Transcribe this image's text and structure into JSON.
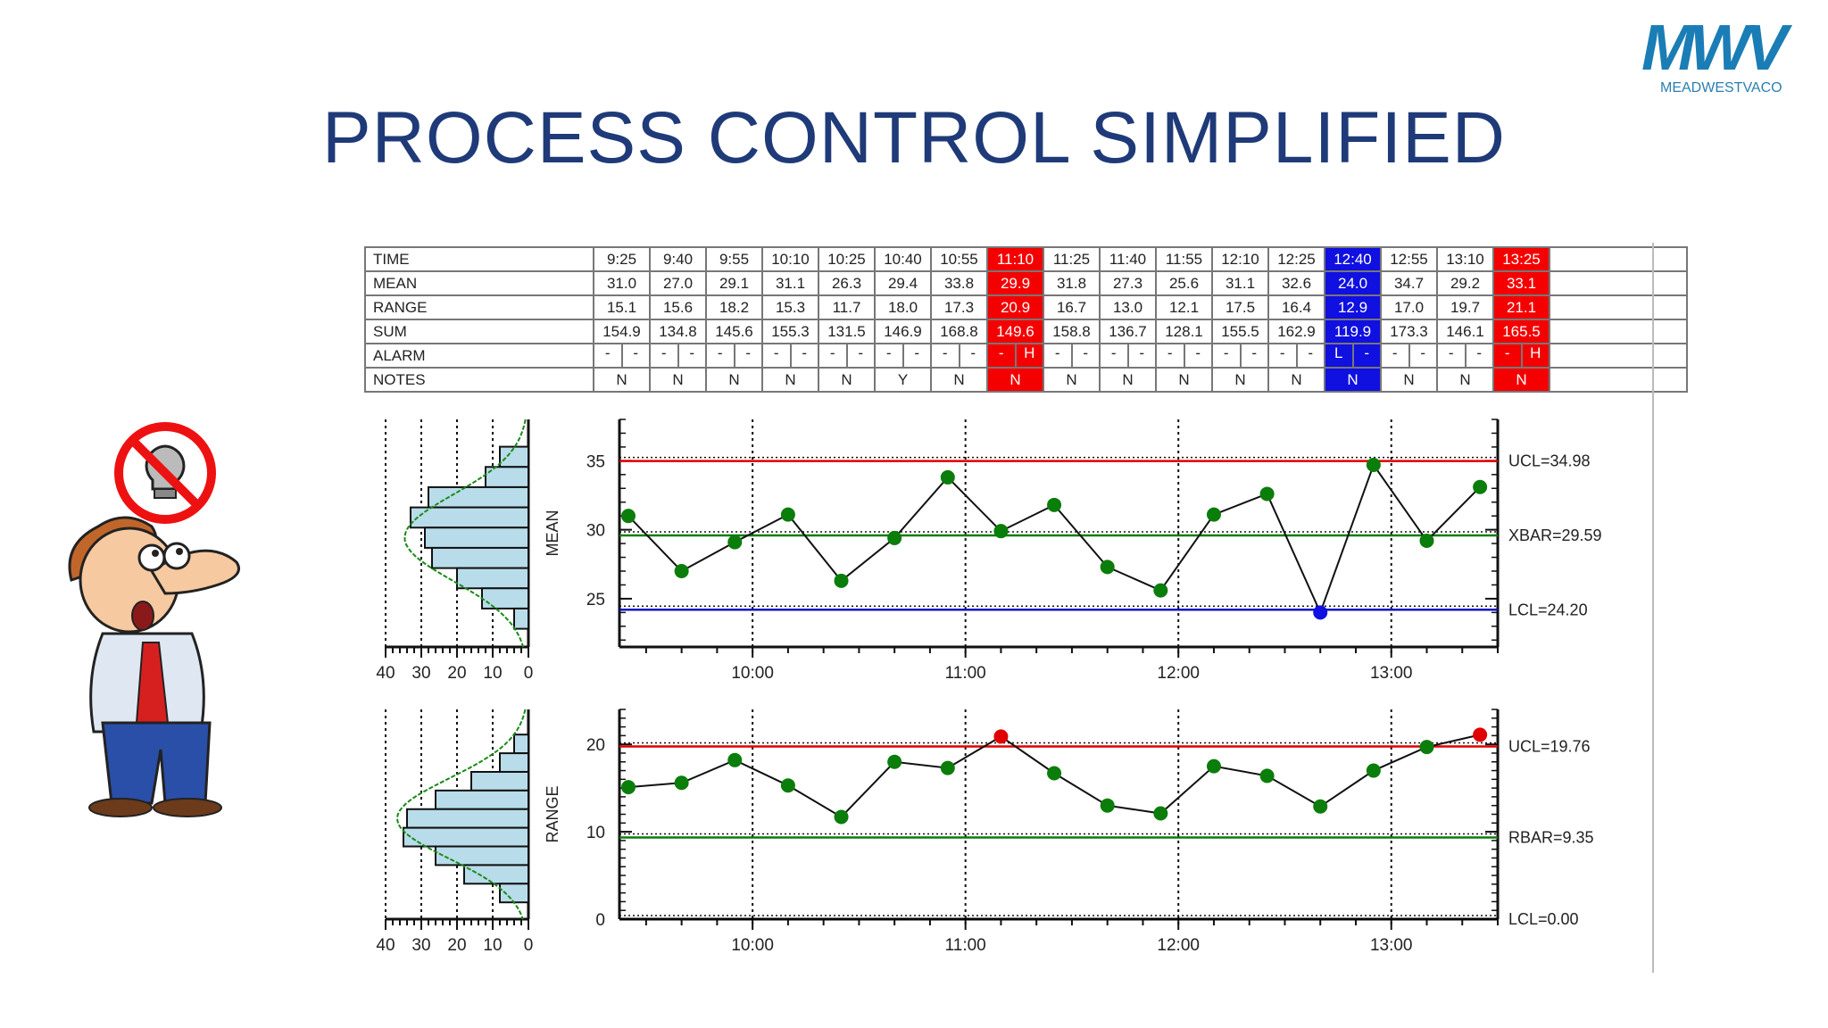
{
  "logo": {
    "text": "MWV",
    "subtitle": "MEADWESTVACO",
    "color": "#1b7db5"
  },
  "title": "PROCESS CONTROL SIMPLIFIED",
  "table": {
    "row_labels": [
      "TIME",
      "MEAN",
      "RANGE",
      "SUM",
      "ALARM",
      "NOTES"
    ],
    "columns": [
      {
        "time": "9:25",
        "mean": "31.0",
        "range": "15.1",
        "sum": "154.9",
        "alarm": [
          "-",
          "-"
        ],
        "note": "N",
        "status": ""
      },
      {
        "time": "9:40",
        "mean": "27.0",
        "range": "15.6",
        "sum": "134.8",
        "alarm": [
          "-",
          "-"
        ],
        "note": "N",
        "status": ""
      },
      {
        "time": "9:55",
        "mean": "29.1",
        "range": "18.2",
        "sum": "145.6",
        "alarm": [
          "-",
          "-"
        ],
        "note": "N",
        "status": ""
      },
      {
        "time": "10:10",
        "mean": "31.1",
        "range": "15.3",
        "sum": "155.3",
        "alarm": [
          "-",
          "-"
        ],
        "note": "N",
        "status": ""
      },
      {
        "time": "10:25",
        "mean": "26.3",
        "range": "11.7",
        "sum": "131.5",
        "alarm": [
          "-",
          "-"
        ],
        "note": "N",
        "status": ""
      },
      {
        "time": "10:40",
        "mean": "29.4",
        "range": "18.0",
        "sum": "146.9",
        "alarm": [
          "-",
          "-"
        ],
        "note": "Y",
        "status": ""
      },
      {
        "time": "10:55",
        "mean": "33.8",
        "range": "17.3",
        "sum": "168.8",
        "alarm": [
          "-",
          "-"
        ],
        "note": "N",
        "status": ""
      },
      {
        "time": "11:10",
        "mean": "29.9",
        "range": "20.9",
        "sum": "149.6",
        "alarm": [
          "-",
          "H"
        ],
        "note": "N",
        "status": "red"
      },
      {
        "time": "11:25",
        "mean": "31.8",
        "range": "16.7",
        "sum": "158.8",
        "alarm": [
          "-",
          "-"
        ],
        "note": "N",
        "status": ""
      },
      {
        "time": "11:40",
        "mean": "27.3",
        "range": "13.0",
        "sum": "136.7",
        "alarm": [
          "-",
          "-"
        ],
        "note": "N",
        "status": ""
      },
      {
        "time": "11:55",
        "mean": "25.6",
        "range": "12.1",
        "sum": "128.1",
        "alarm": [
          "-",
          "-"
        ],
        "note": "N",
        "status": ""
      },
      {
        "time": "12:10",
        "mean": "31.1",
        "range": "17.5",
        "sum": "155.5",
        "alarm": [
          "-",
          "-"
        ],
        "note": "N",
        "status": ""
      },
      {
        "time": "12:25",
        "mean": "32.6",
        "range": "16.4",
        "sum": "162.9",
        "alarm": [
          "-",
          "-"
        ],
        "note": "N",
        "status": ""
      },
      {
        "time": "12:40",
        "mean": "24.0",
        "range": "12.9",
        "sum": "119.9",
        "alarm": [
          "L",
          "-"
        ],
        "note": "N",
        "status": "blue"
      },
      {
        "time": "12:55",
        "mean": "34.7",
        "range": "17.0",
        "sum": "173.3",
        "alarm": [
          "-",
          "-"
        ],
        "note": "N",
        "status": ""
      },
      {
        "time": "13:10",
        "mean": "29.2",
        "range": "19.7",
        "sum": "146.1",
        "alarm": [
          "-",
          "-"
        ],
        "note": "N",
        "status": ""
      },
      {
        "time": "13:25",
        "mean": "33.1",
        "range": "21.1",
        "sum": "165.5",
        "alarm": [
          "-",
          "H"
        ],
        "note": "N",
        "status": "red"
      }
    ]
  },
  "chart_data": [
    {
      "type": "line",
      "ylabel": "MEAN",
      "ylim": [
        21.5,
        38
      ],
      "yticks": [
        "25",
        "30",
        "35"
      ],
      "xticks": [
        "10:00",
        "11:00",
        "12:00",
        "13:00"
      ],
      "x": [
        "9:25",
        "9:40",
        "9:55",
        "10:10",
        "10:25",
        "10:40",
        "10:55",
        "11:10",
        "11:25",
        "11:40",
        "11:55",
        "12:10",
        "12:25",
        "12:40",
        "12:55",
        "13:10",
        "13:25"
      ],
      "values": [
        31.0,
        27.0,
        29.1,
        31.1,
        26.3,
        29.4,
        33.8,
        29.9,
        31.8,
        27.3,
        25.6,
        31.1,
        32.6,
        24.0,
        34.7,
        29.2,
        33.1
      ],
      "point_colors": [
        "#0a7d0a",
        "#0a7d0a",
        "#0a7d0a",
        "#0a7d0a",
        "#0a7d0a",
        "#0a7d0a",
        "#0a7d0a",
        "#0a7d0a",
        "#0a7d0a",
        "#0a7d0a",
        "#0a7d0a",
        "#0a7d0a",
        "#0a7d0a",
        "#1010e0",
        "#0a7d0a",
        "#0a7d0a",
        "#0a7d0a"
      ],
      "control_lines": [
        {
          "label": "UCL=34.98",
          "value": 34.98,
          "color": "#e00000"
        },
        {
          "label": "XBAR=29.59",
          "value": 29.59,
          "color": "#0a7d0a"
        },
        {
          "label": "LCL=24.20",
          "value": 24.2,
          "color": "#1010c0"
        }
      ],
      "histogram": {
        "xticks": [
          "40",
          "30",
          "20",
          "10",
          "0"
        ],
        "bars": [
          8,
          12,
          28,
          33,
          29,
          27,
          20,
          13,
          4
        ]
      },
      "grid": "vertical dotted"
    },
    {
      "type": "line",
      "ylabel": "RANGE",
      "ylim": [
        0,
        24
      ],
      "yticks": [
        "0",
        "10",
        "20"
      ],
      "xticks": [
        "10:00",
        "11:00",
        "12:00",
        "13:00"
      ],
      "x": [
        "9:25",
        "9:40",
        "9:55",
        "10:10",
        "10:25",
        "10:40",
        "10:55",
        "11:10",
        "11:25",
        "11:40",
        "11:55",
        "12:10",
        "12:25",
        "12:40",
        "12:55",
        "13:10",
        "13:25"
      ],
      "values": [
        15.1,
        15.6,
        18.2,
        15.3,
        11.7,
        18.0,
        17.3,
        20.9,
        16.7,
        13.0,
        12.1,
        17.5,
        16.4,
        12.9,
        17.0,
        19.7,
        21.1
      ],
      "point_colors": [
        "#0a7d0a",
        "#0a7d0a",
        "#0a7d0a",
        "#0a7d0a",
        "#0a7d0a",
        "#0a7d0a",
        "#0a7d0a",
        "#e00000",
        "#0a7d0a",
        "#0a7d0a",
        "#0a7d0a",
        "#0a7d0a",
        "#0a7d0a",
        "#0a7d0a",
        "#0a7d0a",
        "#0a7d0a",
        "#e00000"
      ],
      "control_lines": [
        {
          "label": "UCL=19.76",
          "value": 19.76,
          "color": "#e00000"
        },
        {
          "label": "RBAR=9.35",
          "value": 9.35,
          "color": "#0a7d0a"
        },
        {
          "label": "LCL=0.00",
          "value": 0.0,
          "color": "#000000"
        }
      ],
      "histogram": {
        "xticks": [
          "40",
          "30",
          "20",
          "10",
          "0"
        ],
        "bars": [
          4,
          8,
          16,
          26,
          34,
          35,
          26,
          18,
          8
        ]
      },
      "grid": "vertical dotted"
    }
  ]
}
